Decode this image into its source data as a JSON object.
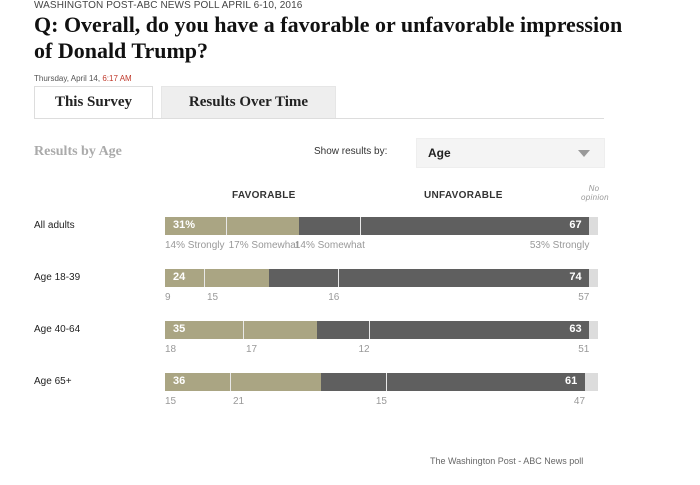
{
  "header": {
    "kicker": "WASHINGTON POST-ABC NEWS POLL APRIL 6-10, 2016",
    "question": "Q: Overall, do you have a favorable or unfavorable impression of Donald Trump?",
    "date": "Thursday, April 14,",
    "time": "6:17 AM"
  },
  "tabs": [
    {
      "label": "This Survey",
      "active": true
    },
    {
      "label": "Results Over Time",
      "active": false
    }
  ],
  "controls": {
    "title": "Results by Age",
    "show_label": "Show results by:",
    "select_value": "Age"
  },
  "columns": {
    "favorable": "FAVORABLE",
    "unfavorable": "UNFAVORABLE",
    "no_opinion": "No opinion"
  },
  "colors": {
    "favorable": "#aaa583",
    "unfavorable": "#5f5f5f",
    "no_opinion": "#dcdcdc"
  },
  "rows": [
    {
      "label": "All adults",
      "favorable": 31,
      "unfavorable": 67,
      "fav_label": "31%",
      "unfav_label": "67",
      "fav_strong": 14,
      "fav_somewhat": 17,
      "unfav_somewhat": 14,
      "unfav_strong": 53,
      "fav_strong_label": "14% Strongly",
      "fav_somewhat_label": "17% Somewhat",
      "unfav_somewhat_label": "14% Somewhat",
      "unfav_strong_label": "53% Strongly"
    },
    {
      "label": "Age 18-39",
      "favorable": 24,
      "unfavorable": 74,
      "fav_label": "24",
      "unfav_label": "74",
      "fav_strong": 9,
      "fav_somewhat": 15,
      "unfav_somewhat": 16,
      "unfav_strong": 57,
      "fav_strong_label": "9",
      "fav_somewhat_label": "15",
      "unfav_somewhat_label": "16",
      "unfav_strong_label": "57"
    },
    {
      "label": "Age 40-64",
      "favorable": 35,
      "unfavorable": 63,
      "fav_label": "35",
      "unfav_label": "63",
      "fav_strong": 18,
      "fav_somewhat": 17,
      "unfav_somewhat": 12,
      "unfav_strong": 51,
      "fav_strong_label": "18",
      "fav_somewhat_label": "17",
      "unfav_somewhat_label": "12",
      "unfav_strong_label": "51"
    },
    {
      "label": "Age 65+",
      "favorable": 36,
      "unfavorable": 61,
      "fav_label": "36",
      "unfav_label": "61",
      "fav_strong": 15,
      "fav_somewhat": 21,
      "unfav_somewhat": 15,
      "unfav_strong": 47,
      "fav_strong_label": "15",
      "fav_somewhat_label": "21",
      "unfav_somewhat_label": "15",
      "unfav_strong_label": "47"
    }
  ],
  "source": "The Washington Post - ABC News poll"
}
